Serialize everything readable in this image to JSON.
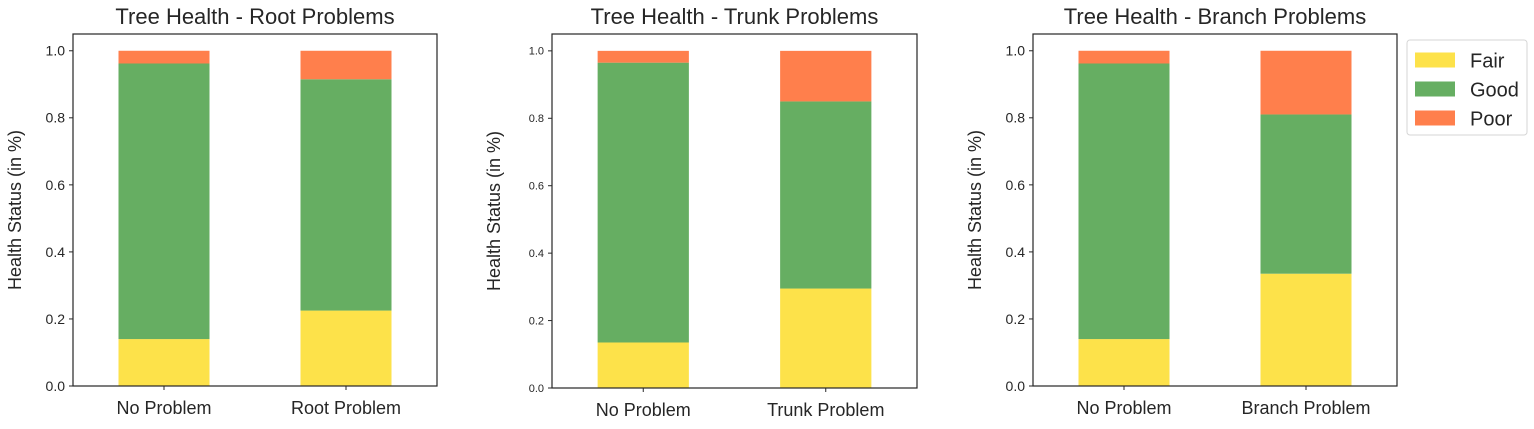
{
  "colors": {
    "Fair": "#fde24a",
    "Good": "#66ae62",
    "Poor": "#ff7f4c"
  },
  "legend": {
    "placement": "outside-right",
    "entries": [
      "Fair",
      "Good",
      "Poor"
    ]
  },
  "chart_data": [
    {
      "type": "bar",
      "stacked": true,
      "title": "Tree Health - Root Problems",
      "ylabel": "Health Status (in %)",
      "xlabel": "",
      "ylim": [
        0,
        1.05
      ],
      "yticks": [
        "0.0",
        "0.2",
        "0.4",
        "0.6",
        "0.8",
        "1.0"
      ],
      "categories": [
        "No Problem",
        "Root Problem"
      ],
      "series": [
        {
          "name": "Fair",
          "values": [
            0.14,
            0.225
          ]
        },
        {
          "name": "Good",
          "values": [
            0.822,
            0.69
          ]
        },
        {
          "name": "Poor",
          "values": [
            0.038,
            0.085
          ]
        }
      ]
    },
    {
      "type": "bar",
      "stacked": true,
      "title": "Tree Health - Trunk Problems",
      "ylabel": "Health Status (in %)",
      "xlabel": "",
      "ylim": [
        0,
        1.05
      ],
      "yticks": [
        "0.0",
        "0.2",
        "0.4",
        "0.6",
        "0.8",
        "1.0"
      ],
      "categories": [
        "No Problem",
        "Trunk Problem"
      ],
      "series": [
        {
          "name": "Fair",
          "values": [
            0.135,
            0.295
          ]
        },
        {
          "name": "Good",
          "values": [
            0.83,
            0.555
          ]
        },
        {
          "name": "Poor",
          "values": [
            0.035,
            0.15
          ]
        }
      ]
    },
    {
      "type": "bar",
      "stacked": true,
      "title": "Tree Health - Branch Problems",
      "ylabel": "Health Status (in %)",
      "xlabel": "",
      "ylim": [
        0,
        1.05
      ],
      "yticks": [
        "0.0",
        "0.2",
        "0.4",
        "0.6",
        "0.8",
        "1.0"
      ],
      "categories": [
        "No Problem",
        "Branch Problem"
      ],
      "series": [
        {
          "name": "Fair",
          "values": [
            0.14,
            0.335
          ]
        },
        {
          "name": "Good",
          "values": [
            0.822,
            0.475
          ]
        },
        {
          "name": "Poor",
          "values": [
            0.038,
            0.19
          ]
        }
      ]
    }
  ]
}
